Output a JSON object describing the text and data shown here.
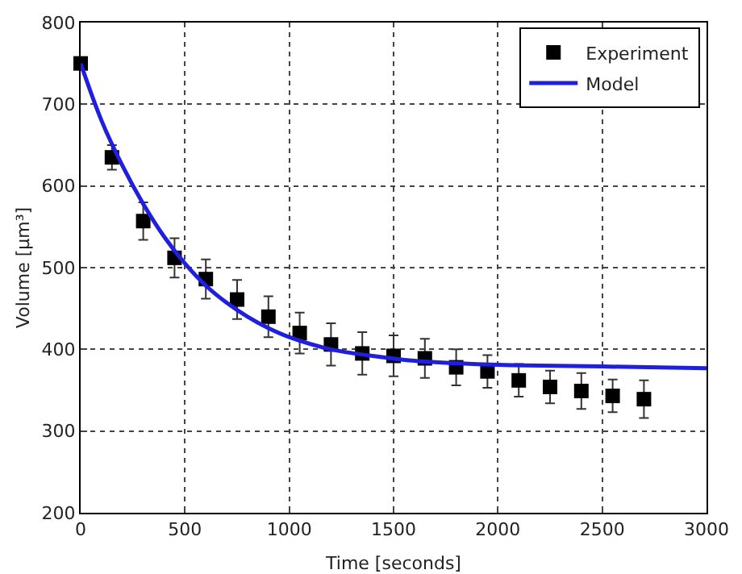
{
  "chart_data": {
    "type": "scatter",
    "xlabel": "Time [seconds]",
    "ylabel": "Volume [μm³]",
    "xlim": [
      0,
      3000
    ],
    "xticks": [
      0,
      500,
      1000,
      1500,
      2000,
      2500,
      3000
    ],
    "ylim": [
      200,
      800
    ],
    "yticks": [
      200,
      300,
      400,
      500,
      600,
      700,
      800
    ],
    "grid": true,
    "legend": "top right",
    "series": [
      {
        "name": "Experiment",
        "marker": "square",
        "color": "#000000",
        "x": [
          0,
          150,
          300,
          450,
          600,
          750,
          900,
          1050,
          1200,
          1350,
          1500,
          1650,
          1800,
          1950,
          2100,
          2250,
          2400,
          2550,
          2700
        ],
        "values": [
          750,
          635,
          557,
          512,
          486,
          461,
          440,
          420,
          406,
          395,
          392,
          389,
          378,
          373,
          362,
          354,
          349,
          343,
          339
        ],
        "errors": [
          null,
          15,
          23,
          24,
          24,
          24,
          25,
          25,
          26,
          26,
          25,
          24,
          22,
          20,
          20,
          20,
          22,
          20,
          23
        ]
      },
      {
        "name": "Model",
        "type": "line",
        "line_style": "solid",
        "color": "#1f1fdd",
        "x": [
          0,
          100,
          200,
          300,
          400,
          500,
          600,
          700,
          800,
          900,
          1000,
          1200,
          1400,
          1600,
          1800,
          2000,
          2200,
          2500,
          3000
        ],
        "values": [
          750,
          680,
          625,
          578,
          538,
          505,
          478,
          457,
          440,
          426,
          415,
          400,
          392,
          386,
          383,
          381,
          380,
          379,
          377
        ]
      }
    ]
  }
}
